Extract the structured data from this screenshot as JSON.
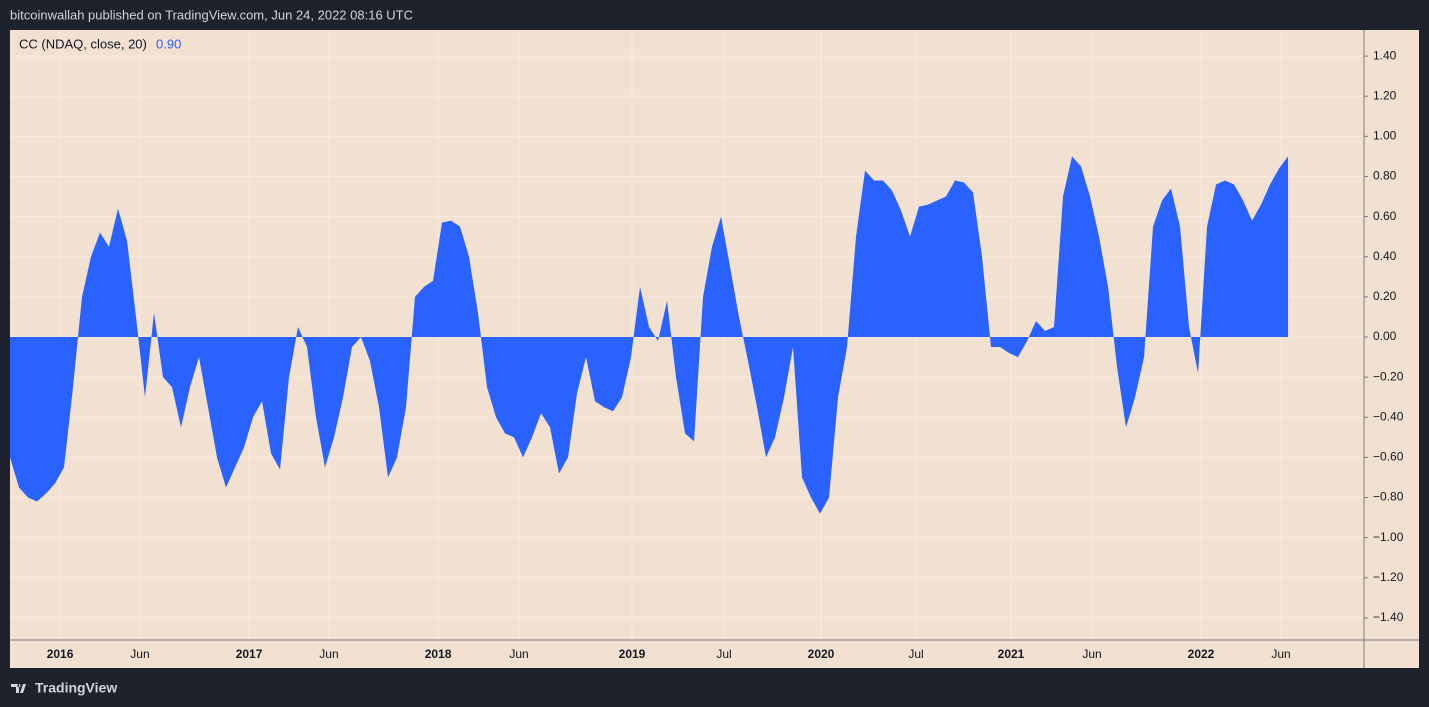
{
  "header": "bitcoinwallah published on TradingView.com, Jun 24, 2022 08:16 UTC",
  "footer": "TradingView",
  "chart_data": {
    "type": "area",
    "indicator": "CC (NDAQ, close, 20)",
    "last_value_label": "0.90",
    "color": "#2962ff",
    "background": "#f2e0d1",
    "grid": true,
    "values": [
      -0.6,
      -0.75,
      -0.8,
      -0.82,
      -0.78,
      -0.73,
      -0.65,
      -0.25,
      0.2,
      0.4,
      0.52,
      0.45,
      0.64,
      0.48,
      0.1,
      -0.3,
      0.12,
      -0.2,
      -0.25,
      -0.45,
      -0.25,
      -0.1,
      -0.35,
      -0.6,
      -0.75,
      -0.65,
      -0.55,
      -0.4,
      -0.32,
      -0.58,
      -0.66,
      -0.2,
      0.05,
      -0.05,
      -0.4,
      -0.65,
      -0.5,
      -0.3,
      -0.05,
      0.0,
      -0.12,
      -0.35,
      -0.7,
      -0.6,
      -0.35,
      0.2,
      0.25,
      0.28,
      0.57,
      0.58,
      0.55,
      0.4,
      0.12,
      -0.25,
      -0.4,
      -0.48,
      -0.5,
      -0.6,
      -0.5,
      -0.38,
      -0.45,
      -0.68,
      -0.6,
      -0.28,
      -0.1,
      -0.32,
      -0.35,
      -0.37,
      -0.3,
      -0.1,
      0.25,
      0.05,
      -0.02,
      0.18,
      -0.2,
      -0.48,
      -0.52,
      0.2,
      0.45,
      0.6,
      0.35,
      0.1,
      -0.12,
      -0.35,
      -0.6,
      -0.5,
      -0.3,
      -0.05,
      -0.7,
      -0.8,
      -0.88,
      -0.8,
      -0.3,
      -0.05,
      0.5,
      0.83,
      0.78,
      0.78,
      0.73,
      0.63,
      0.5,
      0.65,
      0.66,
      0.68,
      0.7,
      0.78,
      0.77,
      0.72,
      0.4,
      -0.05,
      -0.05,
      -0.08,
      -0.1,
      -0.02,
      0.08,
      0.03,
      0.05,
      0.7,
      0.9,
      0.85,
      0.7,
      0.5,
      0.25,
      -0.15,
      -0.45,
      -0.3,
      -0.1,
      0.55,
      0.68,
      0.74,
      0.55,
      0.05,
      -0.18,
      0.55,
      0.76,
      0.78,
      0.76,
      0.68,
      0.58,
      0.66,
      0.76,
      0.84,
      0.9
    ],
    "xlim": [
      0,
      150.44
    ],
    "xticks": [
      {
        "value": 5.56,
        "label": "2016"
      },
      {
        "value": 14.44,
        "label": "Jun"
      },
      {
        "value": 26.56,
        "label": "2017"
      },
      {
        "value": 35.44,
        "label": "Jun"
      },
      {
        "value": 47.56,
        "label": "2018"
      },
      {
        "value": 56.56,
        "label": "Jun"
      },
      {
        "value": 69.11,
        "label": "2019"
      },
      {
        "value": 79.33,
        "label": "Jul"
      },
      {
        "value": 90.11,
        "label": "2020"
      },
      {
        "value": 100.67,
        "label": "Jul"
      },
      {
        "value": 111.22,
        "label": "2021"
      },
      {
        "value": 120.22,
        "label": "Jun"
      },
      {
        "value": 132.33,
        "label": "2022"
      },
      {
        "value": 141.22,
        "label": "Jun"
      }
    ],
    "ylim": [
      -1.51,
      1.53
    ],
    "yticks": [
      {
        "value": 1.4,
        "label": "1.40"
      },
      {
        "value": 1.2,
        "label": "1.20"
      },
      {
        "value": 1.0,
        "label": "1.00"
      },
      {
        "value": 0.8,
        "label": "0.80"
      },
      {
        "value": 0.6,
        "label": "0.60"
      },
      {
        "value": 0.4,
        "label": "0.40"
      },
      {
        "value": 0.2,
        "label": "0.20"
      },
      {
        "value": 0,
        "label": "0.00"
      },
      {
        "value": -0.2,
        "label": "−0.20"
      },
      {
        "value": -0.4,
        "label": "−0.40"
      },
      {
        "value": -0.6,
        "label": "−0.60"
      },
      {
        "value": -0.8,
        "label": "−0.80"
      },
      {
        "value": -1.0,
        "label": "−1.00"
      },
      {
        "value": -1.2,
        "label": "−1.20"
      },
      {
        "value": -1.4,
        "label": "−1.40"
      }
    ]
  }
}
